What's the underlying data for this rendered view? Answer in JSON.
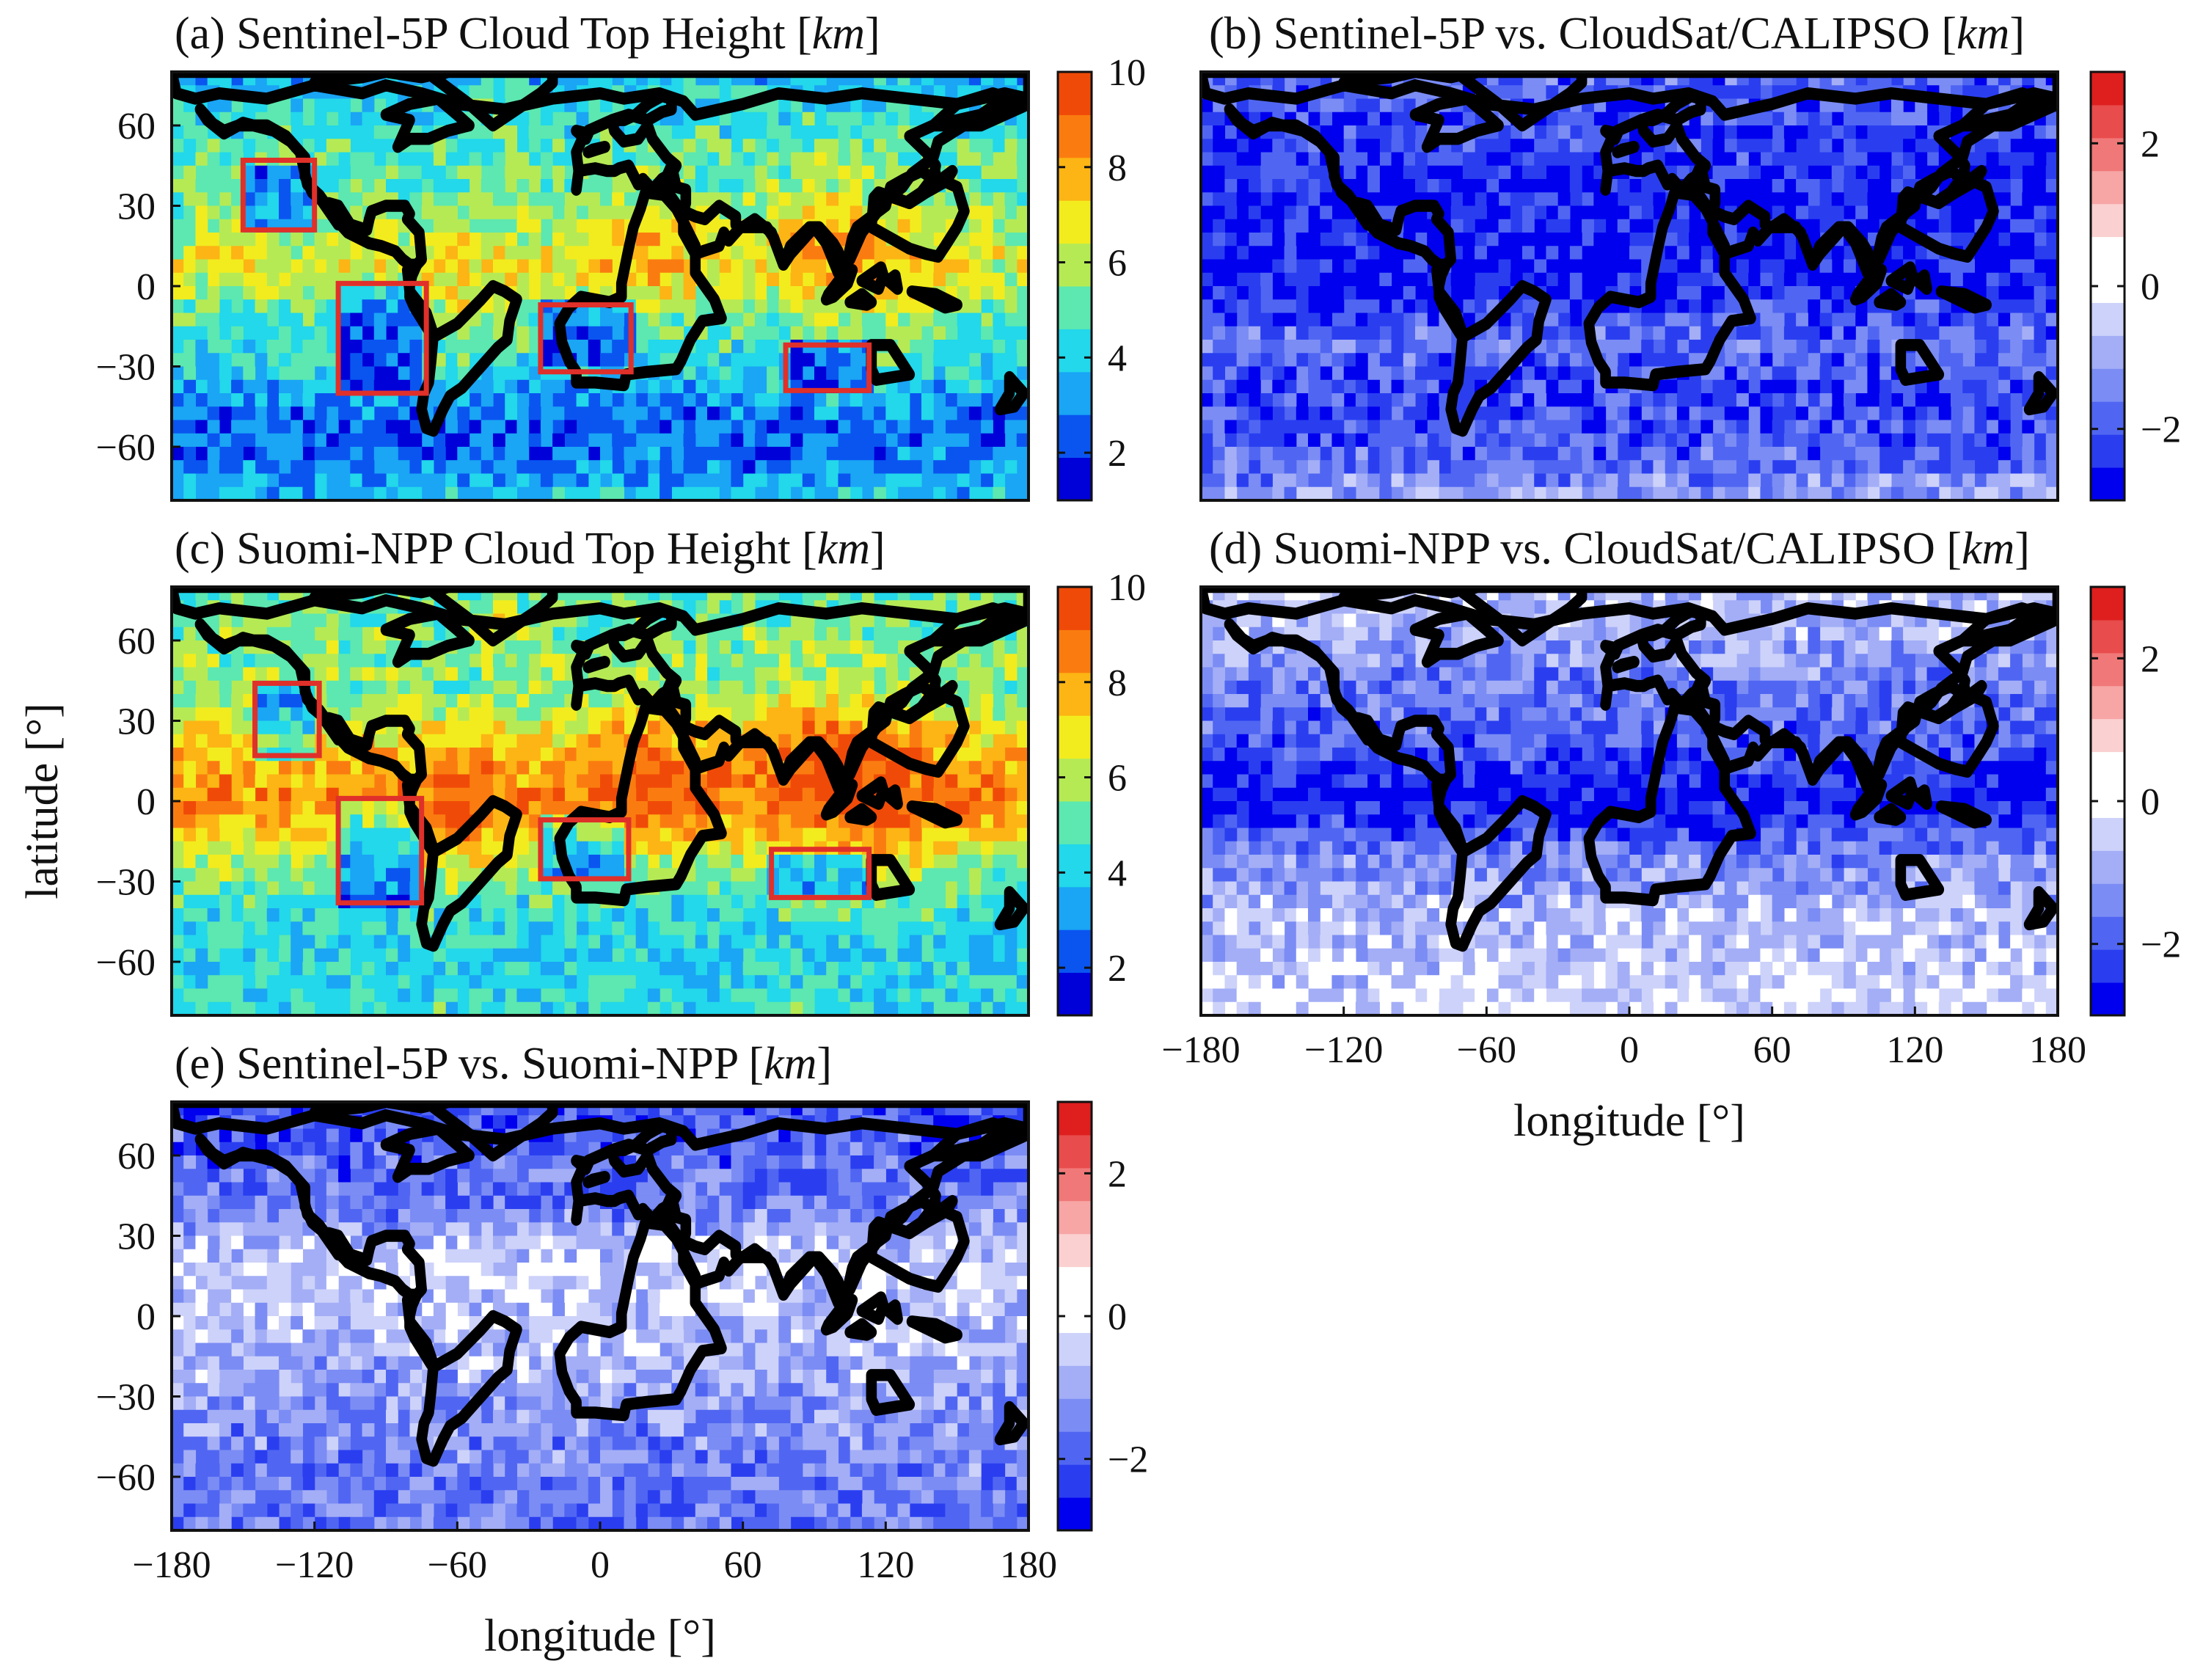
{
  "figure_id": "cloud-top-height-comparison",
  "colors": {
    "cth_colormap": [
      "#0000d8",
      "#0a55f0",
      "#1aa5f5",
      "#22d8ea",
      "#5ce8b0",
      "#b5ea55",
      "#f2ec1e",
      "#fcb514",
      "#fa7c10",
      "#f04a08"
    ],
    "diff_colormap": [
      "#0000ee",
      "#2a3ef0",
      "#5066f2",
      "#7b8cf4",
      "#a3aef6",
      "#cdd2fa",
      "#ffffff",
      "#ffffff",
      "#fbd0d0",
      "#f7a5a5",
      "#f07878",
      "#e84c4c",
      "#df1e1e"
    ],
    "region_box": "#e0302a",
    "coastline": "#000000"
  },
  "chart_data": [
    {
      "type": "heatmap",
      "panel": "a",
      "title_prefix": "(a)  Sentinel-5P  Cloud  Top  Height  [",
      "title_unit": "km",
      "title_suffix": "]",
      "xlim": [
        -180,
        180
      ],
      "ylim": [
        -80,
        80
      ],
      "xticks": [
        -180,
        -120,
        -60,
        0,
        60,
        120,
        180
      ],
      "yticks": [
        60,
        30,
        0,
        -30,
        -60
      ],
      "ytick_labels": [
        "60",
        "30",
        "0",
        "−30",
        "−60"
      ],
      "ylabel": "latitude [°]",
      "clim": [
        1,
        10
      ],
      "colorbar_ticks": [
        10,
        8,
        6,
        4,
        2
      ],
      "colorbar_labels": [
        "10",
        "8",
        "6",
        "4",
        "2"
      ],
      "zonal_mean_cth_km": [
        {
          "lat": 80,
          "value": 3.5
        },
        {
          "lat": 70,
          "value": 4.0
        },
        {
          "lat": 60,
          "value": 4.5
        },
        {
          "lat": 50,
          "value": 5.0
        },
        {
          "lat": 40,
          "value": 5.0
        },
        {
          "lat": 30,
          "value": 5.5
        },
        {
          "lat": 20,
          "value": 6.0
        },
        {
          "lat": 10,
          "value": 6.5
        },
        {
          "lat": 0,
          "value": 6.0
        },
        {
          "lat": -10,
          "value": 5.0
        },
        {
          "lat": -20,
          "value": 4.5
        },
        {
          "lat": -30,
          "value": 4.0
        },
        {
          "lat": -40,
          "value": 3.5
        },
        {
          "lat": -50,
          "value": 2.5
        },
        {
          "lat": -60,
          "value": 2.5
        },
        {
          "lat": -70,
          "value": 3.0
        },
        {
          "lat": -80,
          "value": 4.0
        }
      ],
      "stratocumulus_regions": [
        {
          "lon": [
            -150,
            -120
          ],
          "lat": [
            21,
            47
          ]
        },
        {
          "lon": [
            -110,
            -73
          ],
          "lat": [
            -40,
            1
          ]
        },
        {
          "lon": [
            -25,
            13
          ],
          "lat": [
            -32,
            -7
          ]
        },
        {
          "lon": [
            78,
            113
          ],
          "lat": [
            -39,
            -22
          ]
        }
      ]
    },
    {
      "type": "heatmap",
      "panel": "b",
      "title_prefix": "(b)  Sentinel-5P  vs.  CloudSat/CALIPSO  [",
      "title_unit": "km",
      "title_suffix": "]",
      "xlim": [
        -180,
        180
      ],
      "ylim": [
        -80,
        80
      ],
      "clim": [
        -3,
        3
      ],
      "colorbar_ticks": [
        2,
        0,
        -2
      ],
      "colorbar_labels": [
        "2",
        "0",
        "−2"
      ],
      "zonal_mean_diff_km": [
        {
          "lat": 80,
          "value": -1.8
        },
        {
          "lat": 60,
          "value": -2.2
        },
        {
          "lat": 40,
          "value": -2.5
        },
        {
          "lat": 20,
          "value": -2.6
        },
        {
          "lat": 0,
          "value": -2.6
        },
        {
          "lat": -20,
          "value": -1.7
        },
        {
          "lat": -40,
          "value": -2.2
        },
        {
          "lat": -60,
          "value": -2.0
        },
        {
          "lat": -80,
          "value": -1.0
        }
      ]
    },
    {
      "type": "heatmap",
      "panel": "c",
      "title_prefix": "(c)  Suomi-NPP  Cloud  Top  Height  [",
      "title_unit": "km",
      "title_suffix": "]",
      "xlim": [
        -180,
        180
      ],
      "ylim": [
        -80,
        80
      ],
      "xticks": [
        -180,
        -120,
        -60,
        0,
        60,
        120,
        180
      ],
      "yticks": [
        60,
        30,
        0,
        -30,
        -60
      ],
      "ytick_labels": [
        "60",
        "30",
        "0",
        "−30",
        "−60"
      ],
      "clim": [
        1,
        10
      ],
      "colorbar_ticks": [
        10,
        8,
        6,
        4,
        2
      ],
      "colorbar_labels": [
        "10",
        "8",
        "6",
        "4",
        "2"
      ],
      "zonal_mean_cth_km": [
        {
          "lat": 80,
          "value": 5.0
        },
        {
          "lat": 60,
          "value": 5.5
        },
        {
          "lat": 40,
          "value": 5.5
        },
        {
          "lat": 20,
          "value": 7.5
        },
        {
          "lat": 0,
          "value": 8.5
        },
        {
          "lat": -20,
          "value": 6.0
        },
        {
          "lat": -40,
          "value": 4.5
        },
        {
          "lat": -60,
          "value": 4.0
        },
        {
          "lat": -80,
          "value": 4.5
        }
      ],
      "stratocumulus_regions": [
        {
          "lon": [
            -145,
            -118
          ],
          "lat": [
            17,
            44
          ]
        },
        {
          "lon": [
            -110,
            -75
          ],
          "lat": [
            -38,
            1
          ]
        },
        {
          "lon": [
            -25,
            12
          ],
          "lat": [
            -29,
            -7
          ]
        },
        {
          "lon": [
            72,
            113
          ],
          "lat": [
            -36,
            -18
          ]
        }
      ]
    },
    {
      "type": "heatmap",
      "panel": "d",
      "title_prefix": "(d)  Suomi-NPP  vs.  CloudSat/CALIPSO  [",
      "title_unit": "km",
      "title_suffix": "]",
      "xlim": [
        -180,
        180
      ],
      "ylim": [
        -80,
        80
      ],
      "xticks": [
        -180,
        -120,
        -60,
        0,
        60,
        120,
        180
      ],
      "xtick_labels": [
        "−180",
        "−120",
        "−60",
        "0",
        "60",
        "120",
        "180"
      ],
      "xlabel": "longitude [°]",
      "clim": [
        -3,
        3
      ],
      "colorbar_ticks": [
        2,
        0,
        -2
      ],
      "colorbar_labels": [
        "2",
        "0",
        "−2"
      ],
      "zonal_mean_diff_km": [
        {
          "lat": 80,
          "value": -0.6
        },
        {
          "lat": 60,
          "value": -1.0
        },
        {
          "lat": 40,
          "value": -1.6
        },
        {
          "lat": 20,
          "value": -2.0
        },
        {
          "lat": 0,
          "value": -2.9
        },
        {
          "lat": -20,
          "value": -1.4
        },
        {
          "lat": -40,
          "value": -0.8
        },
        {
          "lat": -60,
          "value": -0.5
        },
        {
          "lat": -80,
          "value": -0.2
        }
      ]
    },
    {
      "type": "heatmap",
      "panel": "e",
      "title_prefix": "(e)  Sentinel-5P  vs.  Suomi-NPP  [",
      "title_unit": "km",
      "title_suffix": "]",
      "xlim": [
        -180,
        180
      ],
      "ylim": [
        -80,
        80
      ],
      "xticks": [
        -180,
        -120,
        -60,
        0,
        60,
        120,
        180
      ],
      "xtick_labels": [
        "−180",
        "−120",
        "−60",
        "0",
        "60",
        "120",
        "180"
      ],
      "yticks": [
        60,
        30,
        0,
        -30,
        -60
      ],
      "ytick_labels": [
        "60",
        "30",
        "0",
        "−30",
        "−60"
      ],
      "xlabel": "longitude [°]",
      "clim": [
        -3,
        3
      ],
      "colorbar_ticks": [
        2,
        0,
        -2
      ],
      "colorbar_labels": [
        "2",
        "0",
        "−2"
      ],
      "zonal_mean_diff_km": [
        {
          "lat": 80,
          "value": -2.0
        },
        {
          "lat": 60,
          "value": -1.9
        },
        {
          "lat": 40,
          "value": -1.5
        },
        {
          "lat": 20,
          "value": -0.3
        },
        {
          "lat": 0,
          "value": -0.7
        },
        {
          "lat": -20,
          "value": -0.9
        },
        {
          "lat": -40,
          "value": -1.3
        },
        {
          "lat": -60,
          "value": -1.5
        },
        {
          "lat": -80,
          "value": -1.7
        }
      ]
    }
  ]
}
